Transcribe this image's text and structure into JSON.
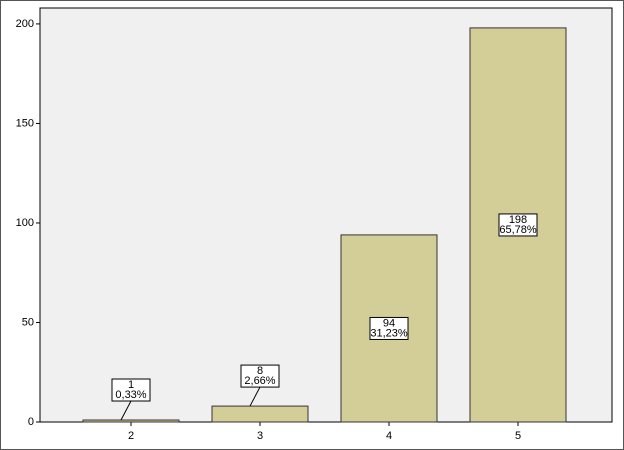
{
  "chart_data": {
    "type": "bar",
    "categories": [
      "2",
      "3",
      "4",
      "5"
    ],
    "values": [
      1,
      8,
      94,
      198
    ],
    "percentages": {
      "values": [
        0.33,
        2.66,
        31.23,
        65.78
      ],
      "value_labels": [
        "0,33%",
        "2,66%",
        "31,23%",
        "65,78%"
      ]
    },
    "color": "#d3ce97",
    "ylim": [
      0,
      208
    ],
    "yticks": [
      0,
      50,
      100,
      150,
      200
    ]
  }
}
